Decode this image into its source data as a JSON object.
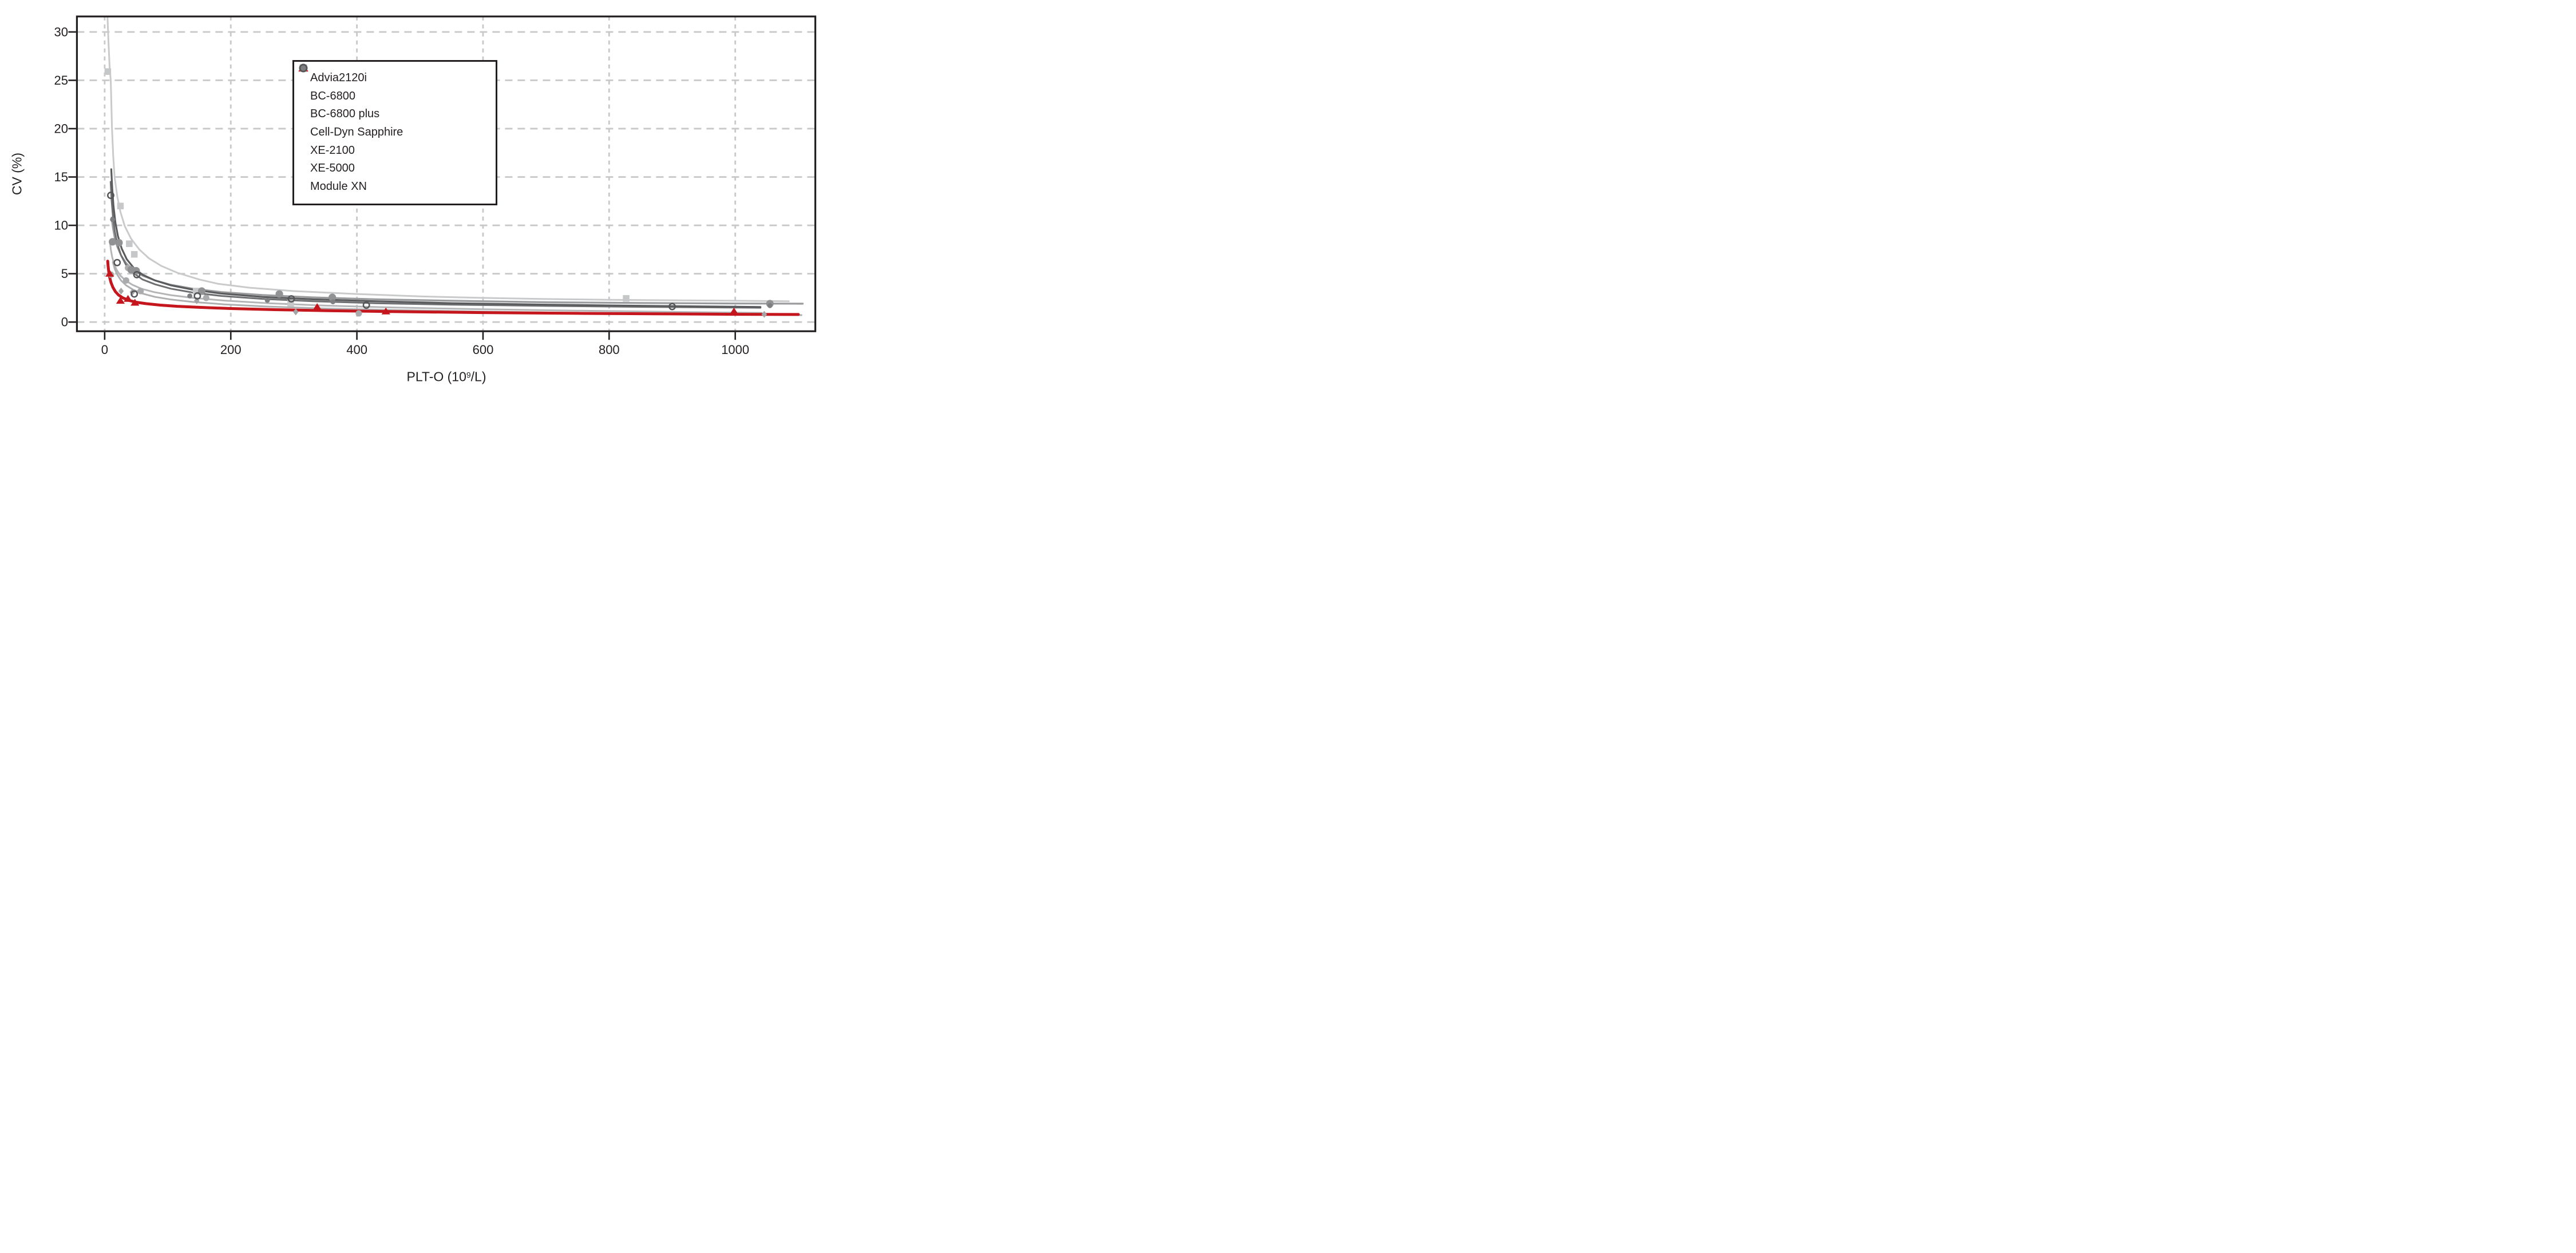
{
  "chart_data": {
    "type": "scatter",
    "title": "",
    "xlabel": {
      "base": "PLT-O (10",
      "sup": "9",
      "rest": "/L)",
      "full_text": "PLT-O (10^9/L)"
    },
    "ylabel": "CV (%)",
    "x_ticks": [
      0,
      200,
      400,
      600,
      800,
      1000
    ],
    "y_ticks": [
      0,
      5,
      10,
      15,
      20,
      25,
      30
    ],
    "xlim": [
      -44,
      1127
    ],
    "ylim": [
      -0.95,
      31.6
    ],
    "grid": true,
    "legend_position": "upper-left-inside",
    "grid_color": "#c7c8ca",
    "border_color": "#231f20",
    "text_color": "#231f20",
    "draw_order": [
      "Advia2120i",
      "BC-6800",
      "Cell-Dyn Sapphire",
      "XE-2100",
      "Module XN",
      "XE-5000",
      "BC-6800 plus"
    ],
    "series": [
      {
        "label": "Advia2120i",
        "slug": "advia2120i",
        "marker": "square",
        "marker_color": "#c5c7c9",
        "msize": 11.5,
        "line_color": "#c9cacc",
        "line_width": 3,
        "points": [
          [
            5,
            25.9
          ],
          [
            25,
            12.0
          ],
          [
            39,
            8.1
          ],
          [
            47,
            7.0
          ],
          [
            145,
            3.2
          ],
          [
            295,
            1.95
          ],
          [
            827,
            2.45
          ]
        ],
        "fit": [
          [
            4.5,
            31.6
          ],
          [
            6,
            29.0
          ],
          [
            8,
            26.2
          ],
          [
            9.6,
            25.0
          ],
          [
            11.6,
            20.0
          ],
          [
            13.5,
            17.2
          ],
          [
            15.7,
            15.0
          ],
          [
            20,
            13.0
          ],
          [
            25,
            11.4
          ],
          [
            32,
            9.9
          ],
          [
            42,
            8.6
          ],
          [
            55,
            7.5
          ],
          [
            70,
            6.6
          ],
          [
            90,
            5.8
          ],
          [
            115,
            5.1
          ],
          [
            150,
            4.4
          ],
          [
            180,
            3.95
          ],
          [
            230,
            3.55
          ],
          [
            300,
            3.2
          ],
          [
            400,
            2.9
          ],
          [
            500,
            2.65
          ],
          [
            600,
            2.5
          ],
          [
            700,
            2.38
          ],
          [
            800,
            2.3
          ],
          [
            900,
            2.25
          ],
          [
            1000,
            2.2
          ],
          [
            1085,
            2.15
          ]
        ]
      },
      {
        "label": "BC-6800",
        "slug": "bc-6800",
        "marker": "circle",
        "marker_color": "#a9abad",
        "msize": 5.6,
        "line_color": "#b4b5b7",
        "line_width": 3,
        "points": [
          [
            10,
            4.9
          ],
          [
            34,
            4.3
          ],
          [
            37,
            5.6
          ],
          [
            57,
            3.2
          ],
          [
            161,
            2.5
          ],
          [
            403,
            0.9
          ]
        ],
        "fit": [
          [
            8.5,
            8.2
          ],
          [
            10,
            7.4
          ],
          [
            12,
            6.7
          ],
          [
            15,
            6.0
          ],
          [
            19,
            5.4
          ],
          [
            25,
            4.8
          ],
          [
            33,
            4.3
          ],
          [
            44,
            3.85
          ],
          [
            58,
            3.45
          ],
          [
            78,
            3.1
          ],
          [
            105,
            2.78
          ],
          [
            140,
            2.5
          ],
          [
            190,
            2.22
          ],
          [
            260,
            1.95
          ],
          [
            350,
            1.7
          ],
          [
            460,
            1.5
          ],
          [
            600,
            1.32
          ],
          [
            750,
            1.18
          ],
          [
            900,
            1.05
          ],
          [
            1042,
            0.95
          ]
        ]
      },
      {
        "label": "BC-6800 plus",
        "slug": "bc-6800-plus",
        "marker": "triangle",
        "marker_color": "#c4161c",
        "msize": 8,
        "line_color": "#c4161c",
        "line_width": 5,
        "points": [
          [
            8,
            5.0
          ],
          [
            25,
            2.2
          ],
          [
            37,
            2.4
          ],
          [
            48,
            2.0
          ],
          [
            337,
            1.55
          ],
          [
            446,
            1.1
          ],
          [
            998,
            1.1
          ]
        ],
        "fit": [
          [
            4.8,
            6.3
          ],
          [
            5.5,
            5.8
          ],
          [
            6.5,
            5.2
          ],
          [
            8,
            4.6
          ],
          [
            10,
            4.1
          ],
          [
            13,
            3.6
          ],
          [
            17,
            3.15
          ],
          [
            22,
            2.8
          ],
          [
            29,
            2.5
          ],
          [
            38,
            2.25
          ],
          [
            50,
            2.05
          ],
          [
            66,
            1.9
          ],
          [
            88,
            1.75
          ],
          [
            115,
            1.63
          ],
          [
            150,
            1.52
          ],
          [
            200,
            1.4
          ],
          [
            270,
            1.28
          ],
          [
            360,
            1.17
          ],
          [
            470,
            1.07
          ],
          [
            600,
            0.98
          ],
          [
            750,
            0.9
          ],
          [
            900,
            0.84
          ],
          [
            1000,
            0.8
          ],
          [
            1100,
            0.78
          ]
        ]
      },
      {
        "label": "Cell-Dyn Sapphire",
        "slug": "cell-dyn-sapphire",
        "marker": "diamond",
        "marker_color": "#a2a4a6",
        "msize": 5,
        "line_color": "#aeafb1",
        "line_width": 3,
        "points": [
          [
            26,
            3.2
          ],
          [
            44,
            3.1
          ],
          [
            146,
            2.2
          ],
          [
            303,
            1.05
          ],
          [
            1046,
            0.8
          ]
        ],
        "fit": [
          [
            13,
            6.2
          ],
          [
            16,
            5.5
          ],
          [
            20,
            4.9
          ],
          [
            26,
            4.3
          ],
          [
            34,
            3.8
          ],
          [
            45,
            3.35
          ],
          [
            60,
            2.95
          ],
          [
            80,
            2.6
          ],
          [
            105,
            2.33
          ],
          [
            140,
            2.08
          ],
          [
            190,
            1.83
          ],
          [
            260,
            1.6
          ],
          [
            350,
            1.4
          ],
          [
            460,
            1.24
          ],
          [
            600,
            1.08
          ],
          [
            750,
            0.95
          ],
          [
            900,
            0.84
          ],
          [
            1000,
            0.77
          ],
          [
            1105,
            0.72
          ]
        ]
      },
      {
        "label": "XE-2100",
        "slug": "xe-2100",
        "marker": "dot",
        "marker_color": "#909294",
        "msize": 6.6,
        "line_color": "#9a9b9d",
        "line_width": 3.2,
        "points": [
          [
            12.5,
            8.3
          ],
          [
            22.7,
            8.2
          ],
          [
            42,
            5.4
          ],
          [
            50,
            5.3
          ],
          [
            154,
            3.2
          ],
          [
            277,
            2.9
          ],
          [
            361,
            2.55
          ],
          [
            1055,
            1.9
          ]
        ],
        "fit": [
          [
            11,
            10.8
          ],
          [
            13,
            9.8
          ],
          [
            16,
            8.7
          ],
          [
            20,
            7.8
          ],
          [
            26,
            6.9
          ],
          [
            34,
            6.1
          ],
          [
            45,
            5.4
          ],
          [
            60,
            4.8
          ],
          [
            80,
            4.3
          ],
          [
            105,
            3.85
          ],
          [
            140,
            3.45
          ],
          [
            185,
            3.1
          ],
          [
            250,
            2.8
          ],
          [
            330,
            2.55
          ],
          [
            430,
            2.35
          ],
          [
            550,
            2.2
          ],
          [
            700,
            2.05
          ],
          [
            850,
            1.97
          ],
          [
            1000,
            1.92
          ],
          [
            1107,
            1.9
          ]
        ]
      },
      {
        "label": "XE-5000",
        "slug": "xe-5000",
        "marker": "dot",
        "marker_color": "#7d7f81",
        "msize": 4.4,
        "line_color": "#5a5b5d",
        "line_width": 3.2,
        "points": [
          [
            12.5,
            10.6
          ],
          [
            135,
            2.7
          ],
          [
            258,
            2.25
          ],
          [
            362,
            2.1
          ],
          [
            1055,
            1.7
          ]
        ],
        "fit": [
          [
            10.5,
            15.8
          ],
          [
            12,
            13.8
          ],
          [
            14,
            12.0
          ],
          [
            17,
            10.3
          ],
          [
            21,
            8.9
          ],
          [
            27,
            7.6
          ],
          [
            35,
            6.5
          ],
          [
            46,
            5.6
          ],
          [
            60,
            4.9
          ],
          [
            80,
            4.3
          ],
          [
            105,
            3.8
          ],
          [
            140,
            3.35
          ],
          [
            185,
            2.95
          ],
          [
            250,
            2.6
          ],
          [
            330,
            2.35
          ],
          [
            430,
            2.15
          ],
          [
            550,
            1.95
          ],
          [
            700,
            1.8
          ],
          [
            850,
            1.68
          ],
          [
            1000,
            1.58
          ],
          [
            1040,
            1.55
          ]
        ]
      },
      {
        "label": "Module XN",
        "slug": "module-xn",
        "marker": "open-circle",
        "marker_color": "#535557",
        "msize": 5.2,
        "line_color": "#6e6f71",
        "line_width": 3,
        "points": [
          [
            9.6,
            13.1
          ],
          [
            19.8,
            6.15
          ],
          [
            47,
            2.9
          ],
          [
            51,
            4.9
          ],
          [
            147,
            2.7
          ],
          [
            296,
            2.4
          ],
          [
            415,
            1.75
          ],
          [
            900,
            1.6
          ]
        ],
        "fit": [
          [
            9.5,
            14.5
          ],
          [
            11,
            12.6
          ],
          [
            13,
            11.0
          ],
          [
            16,
            9.4
          ],
          [
            20,
            8.1
          ],
          [
            26,
            6.9
          ],
          [
            34,
            5.9
          ],
          [
            45,
            5.1
          ],
          [
            60,
            4.4
          ],
          [
            80,
            3.9
          ],
          [
            105,
            3.45
          ],
          [
            140,
            3.05
          ],
          [
            185,
            2.7
          ],
          [
            250,
            2.4
          ],
          [
            330,
            2.15
          ],
          [
            430,
            1.95
          ],
          [
            550,
            1.8
          ],
          [
            700,
            1.67
          ],
          [
            850,
            1.57
          ],
          [
            1000,
            1.5
          ],
          [
            1040,
            1.48
          ]
        ]
      }
    ]
  }
}
